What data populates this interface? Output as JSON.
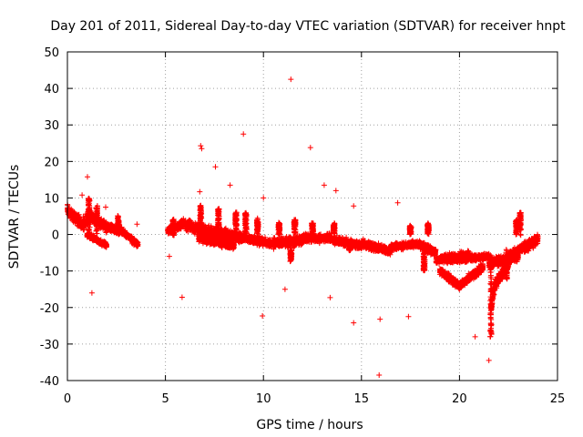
{
  "chart_data": {
    "type": "scatter",
    "title": "Day 201 of 2011, Sidereal Day-to-day VTEC variation (SDTVAR) for receiver hnpt",
    "xlabel": "GPS time / hours",
    "ylabel": "SDTVAR / TECUs",
    "xlim": [
      0,
      25
    ],
    "ylim": [
      -40,
      50
    ],
    "xticks": [
      0,
      5,
      10,
      15,
      20,
      25
    ],
    "yticks": [
      -40,
      -30,
      -20,
      -10,
      0,
      10,
      20,
      30,
      40,
      50
    ],
    "grid": true,
    "marker": "+",
    "series": [
      {
        "name": "SDTVAR",
        "color": "#ff0000",
        "dense_segments": [
          [
            0.0,
            6.5,
            0.3,
            5.0,
            2.0
          ],
          [
            0.3,
            5.0,
            0.8,
            2.5,
            2.0
          ],
          [
            0.8,
            3.0,
            1.2,
            5.0,
            2.5
          ],
          [
            1.2,
            5.0,
            2.0,
            2.0,
            1.8
          ],
          [
            2.0,
            2.0,
            2.8,
            1.0,
            1.5
          ],
          [
            2.8,
            1.0,
            3.6,
            -3.0,
            1.2
          ],
          [
            1.0,
            0.0,
            2.0,
            -3.0,
            1.0
          ],
          [
            5.1,
            1.0,
            5.9,
            3.0,
            1.5
          ],
          [
            5.9,
            3.0,
            6.6,
            1.5,
            2.0
          ],
          [
            6.6,
            1.5,
            7.6,
            0.5,
            2.0
          ],
          [
            7.6,
            0.5,
            9.0,
            -1.0,
            2.0
          ],
          [
            6.7,
            -1.0,
            8.5,
            -3.0,
            1.5
          ],
          [
            9.0,
            -1.0,
            10.5,
            -2.5,
            1.5
          ],
          [
            10.5,
            -2.5,
            12.0,
            -1.5,
            1.8
          ],
          [
            12.0,
            -1.0,
            13.5,
            -1.0,
            1.5
          ],
          [
            13.5,
            -1.5,
            15.0,
            -3.0,
            1.5
          ],
          [
            15.0,
            -2.5,
            16.5,
            -4.5,
            1.5
          ],
          [
            16.5,
            -3.5,
            18.0,
            -2.5,
            1.2
          ],
          [
            18.0,
            -3.0,
            18.8,
            -5.0,
            1.5
          ],
          [
            18.8,
            -7.0,
            20.5,
            -5.5,
            1.5
          ],
          [
            19.0,
            -10.0,
            20.0,
            -14.0,
            1.5
          ],
          [
            20.0,
            -14.0,
            21.2,
            -9.0,
            1.5
          ],
          [
            19.5,
            -7.0,
            21.5,
            -6.0,
            1.2
          ],
          [
            21.5,
            -8.0,
            23.0,
            -6.0,
            1.8
          ],
          [
            21.6,
            -20.0,
            21.8,
            -14.0,
            2.0
          ],
          [
            21.8,
            -14.0,
            22.5,
            -8.0,
            2.0
          ],
          [
            22.5,
            -6.0,
            23.4,
            -3.0,
            1.5
          ],
          [
            23.3,
            -4.0,
            24.0,
            -1.0,
            2.0
          ]
        ],
        "spikes": [
          [
            1.1,
            10.0,
            3.0
          ],
          [
            1.5,
            8.0,
            3.0
          ],
          [
            2.6,
            5.0,
            3.0
          ],
          [
            5.4,
            4.0,
            3.0
          ],
          [
            6.8,
            8.0,
            3.0
          ],
          [
            7.7,
            7.0,
            3.0
          ],
          [
            8.6,
            6.0,
            3.0
          ],
          [
            9.1,
            6.0,
            3.0
          ],
          [
            9.7,
            4.0,
            3.0
          ],
          [
            10.8,
            3.0,
            3.0
          ],
          [
            11.4,
            -7.0,
            3.0
          ],
          [
            11.6,
            4.0,
            3.0
          ],
          [
            12.5,
            3.0,
            3.0
          ],
          [
            13.6,
            3.0,
            3.0
          ],
          [
            14.4,
            -4.0,
            3.0
          ],
          [
            17.5,
            2.0,
            3.0
          ],
          [
            18.2,
            -10.0,
            3.0
          ],
          [
            18.4,
            3.0,
            3.0
          ],
          [
            21.6,
            -28.0,
            3.0
          ],
          [
            22.4,
            -12.0,
            3.0
          ],
          [
            22.9,
            4.0,
            3.0
          ],
          [
            23.1,
            6.0,
            3.0
          ]
        ],
        "outliers": [
          [
            11.4,
            42.5
          ],
          [
            8.98,
            27.5
          ],
          [
            6.8,
            24.3
          ],
          [
            6.85,
            23.5
          ],
          [
            12.4,
            23.8
          ],
          [
            7.55,
            18.5
          ],
          [
            1.02,
            15.8
          ],
          [
            0.75,
            10.8
          ],
          [
            1.95,
            7.5
          ],
          [
            3.55,
            2.8
          ],
          [
            1.25,
            -16.0
          ],
          [
            5.2,
            -6.0
          ],
          [
            5.85,
            -17.2
          ],
          [
            9.95,
            -22.3
          ],
          [
            11.1,
            -15.0
          ],
          [
            13.4,
            -17.3
          ],
          [
            14.6,
            -24.2
          ],
          [
            15.9,
            -38.5
          ],
          [
            15.95,
            -23.2
          ],
          [
            17.4,
            -22.5
          ],
          [
            20.8,
            -28.0
          ],
          [
            21.5,
            -34.5
          ],
          [
            16.85,
            8.7
          ],
          [
            14.6,
            7.8
          ],
          [
            10.0,
            10.0
          ],
          [
            13.1,
            13.5
          ],
          [
            13.7,
            12.0
          ],
          [
            8.3,
            13.5
          ],
          [
            6.75,
            11.7
          ]
        ]
      }
    ]
  }
}
